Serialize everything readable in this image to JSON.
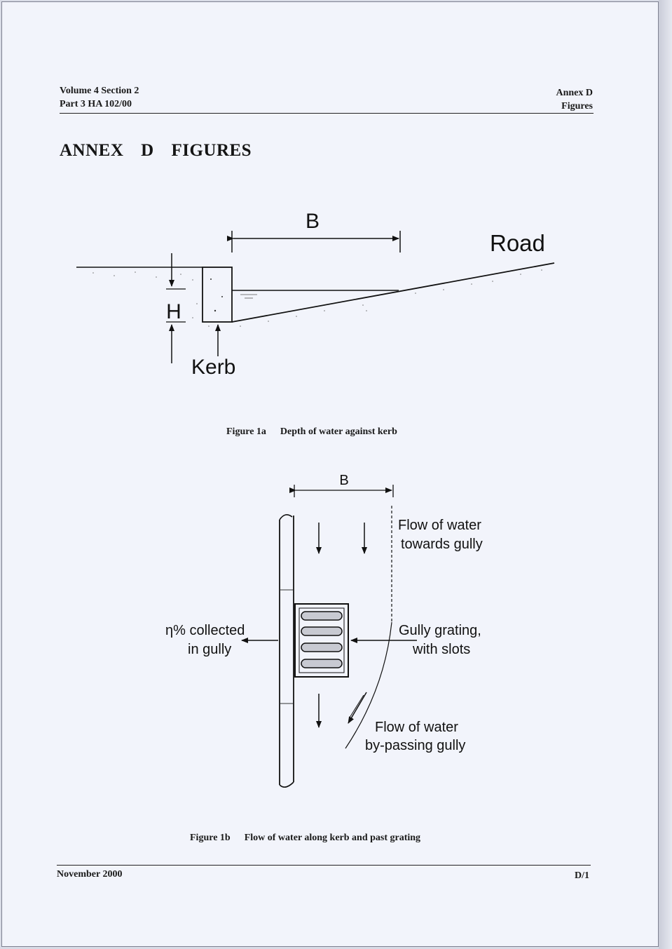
{
  "header": {
    "left_line1": "Volume 4  Section 2",
    "left_line2": "Part 3  HA 102/00",
    "right_line1": "Annex D",
    "right_line2": "Figures"
  },
  "title": "ANNEX D FIGURES",
  "figure1a": {
    "label_b": "B",
    "label_road": "Road",
    "label_h": "H",
    "label_kerb": "Kerb",
    "caption_number": "Figure 1a",
    "caption_text": "Depth of water against kerb"
  },
  "figure1b": {
    "label_b": "B",
    "flow_towards_line1": "Flow of water",
    "flow_towards_line2": "towards gully",
    "collected_line1": "η% collected",
    "collected_line2": "in gully",
    "grating_line1": "Gully grating,",
    "grating_line2": "with slots",
    "bypass_line1": "Flow of water",
    "bypass_line2": "by-passing gully",
    "caption_number": "Figure 1b",
    "caption_text": "Flow of water along kerb and past grating"
  },
  "footer": {
    "date": "November 2000",
    "page": "D/1"
  }
}
